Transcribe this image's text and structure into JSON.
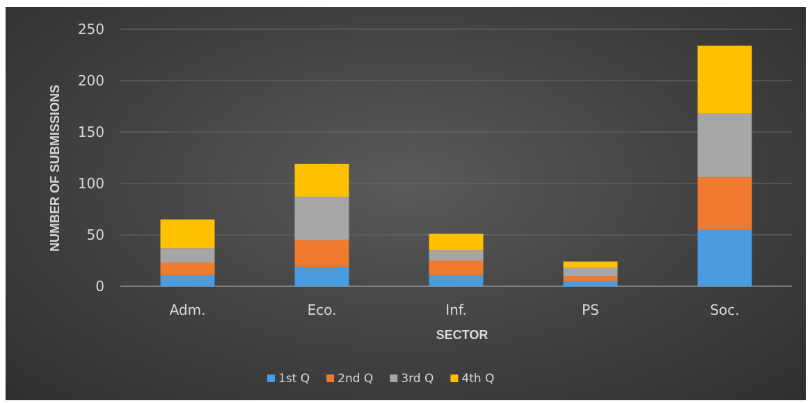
{
  "chart_data": {
    "type": "bar",
    "stacked": true,
    "title": "",
    "xlabel": "SECTOR",
    "ylabel": "NUMBER OF SUBMISSIONS",
    "ylim": [
      0,
      250
    ],
    "yticks": [
      "0",
      "50",
      "100",
      "150",
      "200",
      "250"
    ],
    "categories": [
      "Adm.",
      "Eco.",
      "Inf.",
      "PS",
      "Soc."
    ],
    "series": [
      {
        "name": "1st Q",
        "color": "#4a9be0",
        "values": [
          11,
          19,
          11,
          5,
          55
        ]
      },
      {
        "name": "2nd Q",
        "color": "#f07a2d",
        "values": [
          12,
          26,
          14,
          5,
          51
        ]
      },
      {
        "name": "3rd Q",
        "color": "#a6a6a6",
        "values": [
          14,
          42,
          10,
          8,
          62
        ]
      },
      {
        "name": "4th Q",
        "color": "#ffc000",
        "values": [
          28,
          32,
          16,
          6,
          66
        ]
      }
    ],
    "grid": true,
    "legend_position": "bottom"
  }
}
